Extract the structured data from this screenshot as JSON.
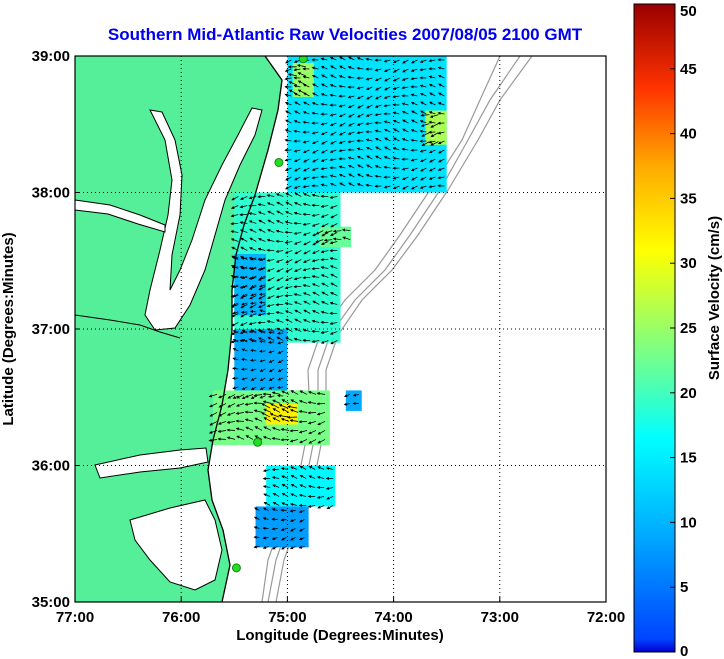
{
  "title": "Southern Mid-Atlantic Raw Velocities 2007/08/05 2100 GMT",
  "title_color": "#0000ee",
  "xlabel": "Longitude (Degrees:Minutes)",
  "ylabel": "Latitude (Degrees:Minutes)",
  "colorbar_label": "Surface Velocity (cm/s)",
  "x_ticks": [
    "77:00",
    "76:00",
    "75:00",
    "74:00",
    "73:00",
    "72:00"
  ],
  "y_ticks": [
    "35:00",
    "36:00",
    "37:00",
    "38:00",
    "39:00"
  ],
  "colorbar_ticks": [
    "0",
    "5",
    "10",
    "15",
    "20",
    "25",
    "30",
    "35",
    "40",
    "45",
    "50"
  ],
  "colors": {
    "land": "#55ee99",
    "water": "#ffffff",
    "coastline": "#000000",
    "bathymetry": "#999999",
    "station": "#22dd22",
    "grid": "#000000"
  },
  "icons": {
    "station_marker": "station-dot-icon",
    "vector": "current-arrow-icon"
  },
  "chart_data": {
    "type": "heatmap",
    "title": "Southern Mid-Atlantic Raw Velocities 2007/08/05 2100 GMT",
    "xlabel": "Longitude (Degrees:Minutes)",
    "ylabel": "Latitude (Degrees:Minutes)",
    "xlim": [
      -77,
      -72
    ],
    "ylim": [
      35,
      39
    ],
    "colorbar": {
      "label": "Surface Velocity (cm/s)",
      "range": [
        0,
        50
      ],
      "colormap": "jet"
    },
    "grid": true,
    "stations": [
      {
        "lon": -74.85,
        "lat": 38.98
      },
      {
        "lon": -75.08,
        "lat": 38.22
      },
      {
        "lon": -75.28,
        "lat": 36.17
      },
      {
        "lon": -75.48,
        "lat": 35.25
      }
    ],
    "velocity_zones": [
      {
        "lon_range": [
          -75.0,
          -73.5
        ],
        "lat_range": [
          38.0,
          39.0
        ],
        "speed": 14
      },
      {
        "lon_range": [
          -74.95,
          -74.75
        ],
        "lat_range": [
          38.7,
          38.95
        ],
        "speed": 25
      },
      {
        "lon_range": [
          -73.7,
          -73.5
        ],
        "lat_range": [
          38.35,
          38.6
        ],
        "speed": 26
      },
      {
        "lon_range": [
          -75.5,
          -74.5
        ],
        "lat_range": [
          36.9,
          38.0
        ],
        "speed": 19
      },
      {
        "lon_range": [
          -74.7,
          -74.4
        ],
        "lat_range": [
          37.6,
          37.75
        ],
        "speed": 22
      },
      {
        "lon_range": [
          -75.5,
          -75.2
        ],
        "lat_range": [
          37.1,
          37.55
        ],
        "speed": 10
      },
      {
        "lon_range": [
          -75.5,
          -75.0
        ],
        "lat_range": [
          36.5,
          37.0
        ],
        "speed": 9
      },
      {
        "lon_range": [
          -75.7,
          -74.6
        ],
        "lat_range": [
          36.15,
          36.55
        ],
        "speed": 23
      },
      {
        "lon_range": [
          -75.2,
          -74.9
        ],
        "lat_range": [
          36.3,
          36.45
        ],
        "speed": 32
      },
      {
        "lon_range": [
          -74.45,
          -74.3
        ],
        "lat_range": [
          36.4,
          36.55
        ],
        "speed": 9
      },
      {
        "lon_range": [
          -75.2,
          -74.55
        ],
        "lat_range": [
          35.7,
          36.0
        ],
        "speed": 16
      },
      {
        "lon_range": [
          -75.3,
          -74.8
        ],
        "lat_range": [
          35.4,
          35.7
        ],
        "speed": 8
      }
    ]
  }
}
